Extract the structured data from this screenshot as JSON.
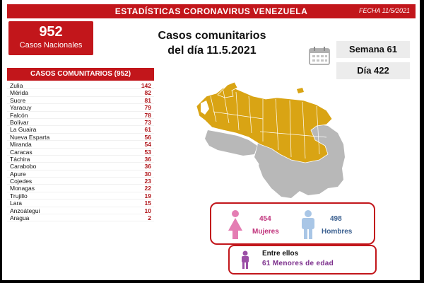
{
  "header": {
    "title": "ESTADÍSTICAS CORONAVIRUS VENEZUELA",
    "date": "FECHA 11/5/2021"
  },
  "total": {
    "number": "952",
    "label": "Casos Nacionales"
  },
  "heading": {
    "line1": "Casos comunitarios",
    "line2": "del día 11.5.2021"
  },
  "week_label": "Semana 61",
  "day_label": "Día 422",
  "table": {
    "title": "CASOS COMUNITARIOS (952)",
    "rows": [
      {
        "state": "Zulia",
        "value": "142"
      },
      {
        "state": "Mérida",
        "value": "82"
      },
      {
        "state": "Sucre",
        "value": "81"
      },
      {
        "state": "Yaracuy",
        "value": "79"
      },
      {
        "state": "Falcón",
        "value": "78"
      },
      {
        "state": "Bolívar",
        "value": "73"
      },
      {
        "state": "La Guaira",
        "value": "61"
      },
      {
        "state": "Nueva Esparta",
        "value": "56"
      },
      {
        "state": "Miranda",
        "value": "54"
      },
      {
        "state": "Caracas",
        "value": "53"
      },
      {
        "state": "Táchira",
        "value": "36"
      },
      {
        "state": "Carabobo",
        "value": "36"
      },
      {
        "state": "Apure",
        "value": "30"
      },
      {
        "state": "Cojedes",
        "value": "23"
      },
      {
        "state": "Monagas",
        "value": "22"
      },
      {
        "state": "Trujillo",
        "value": "19"
      },
      {
        "state": "Lara",
        "value": "15"
      },
      {
        "state": "Anzoátegui",
        "value": "10"
      },
      {
        "state": "Aragua",
        "value": "2"
      }
    ]
  },
  "gender": {
    "female_count": "454",
    "female_label": "Mujeres",
    "male_count": "498",
    "male_label": "Hombres"
  },
  "minors": {
    "label": "Entre ellos",
    "count": "61",
    "text": "Menores de edad"
  },
  "colors": {
    "brand_red": "#c2161b",
    "map_highlight": "#d9a414",
    "map_neutral": "#b8b8b8",
    "female": "#e47db3",
    "male": "#a9c6e6",
    "minor": "#9b4fa6"
  }
}
